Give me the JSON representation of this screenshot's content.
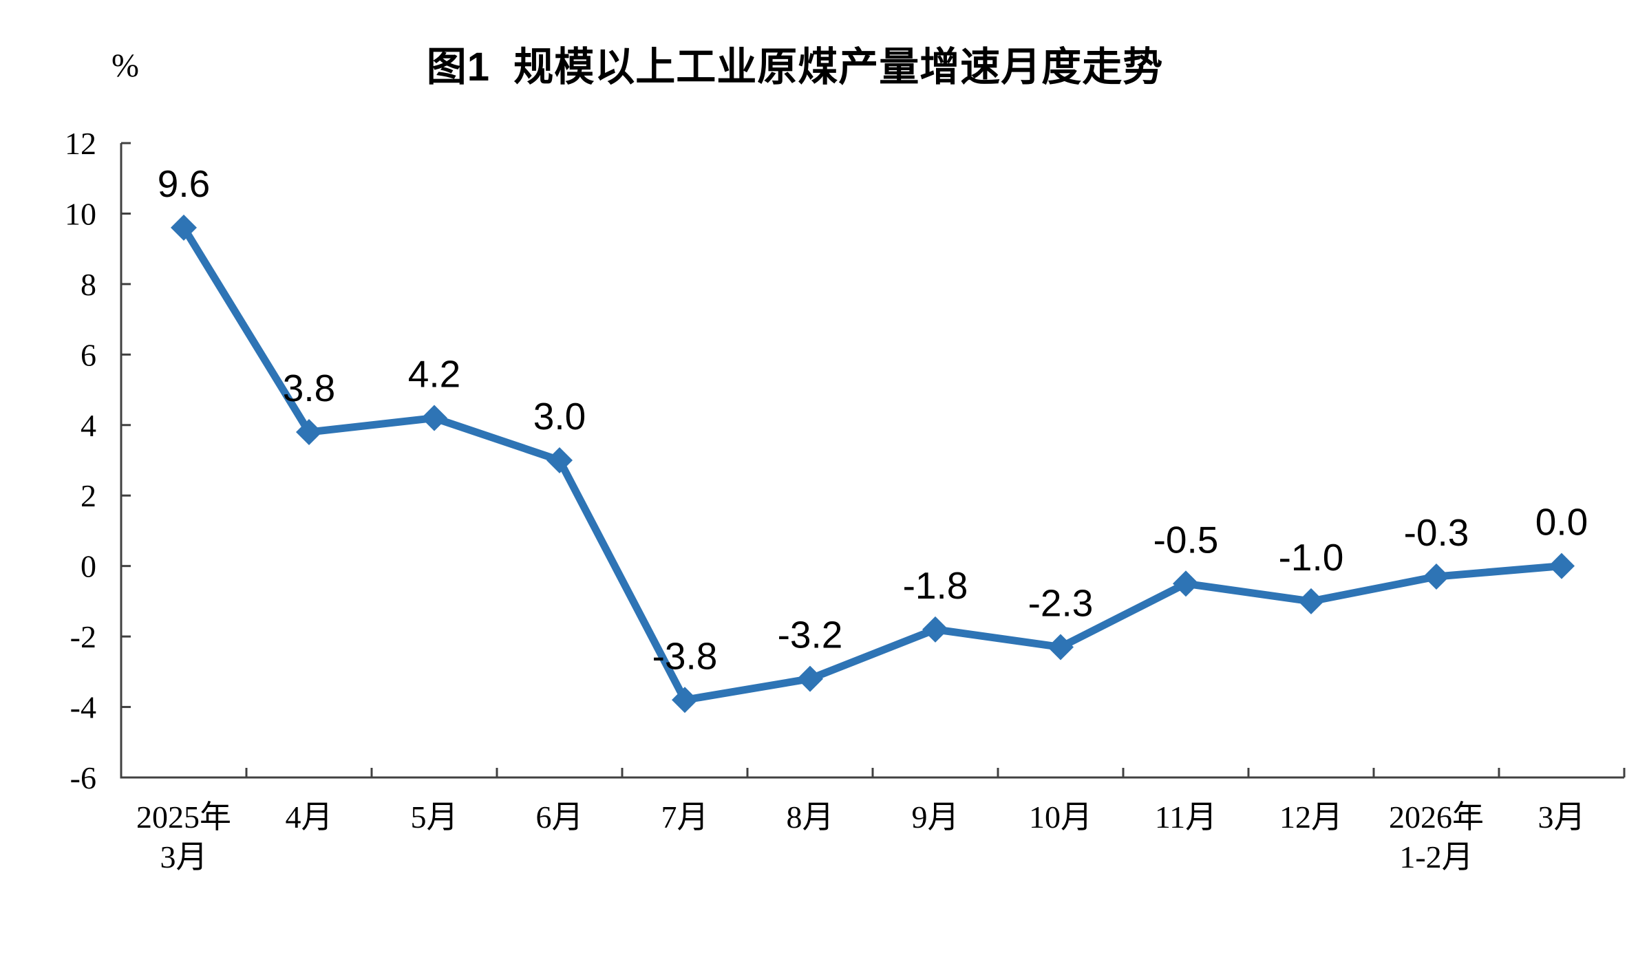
{
  "page": {
    "background": "#FFFFFF"
  },
  "chart_data": {
    "type": "line",
    "title": "图1  规模以上工业原煤产量增速月度走势",
    "unit_label": "%",
    "categories": [
      "2025年\n3月",
      "4月",
      "5月",
      "6月",
      "7月",
      "8月",
      "9月",
      "10月",
      "11月",
      "12月",
      "2026年\n1-2月",
      "3月"
    ],
    "values": [
      9.6,
      3.8,
      4.2,
      3.0,
      -3.8,
      -3.2,
      -1.8,
      -2.3,
      -0.5,
      -1.0,
      -0.3,
      0.0
    ],
    "data_labels": [
      "9.6",
      "3.8",
      "4.2",
      "3.0",
      "-3.8",
      "-3.2",
      "-1.8",
      "-2.3",
      "-0.5",
      "-1.0",
      "-0.3",
      "0.0"
    ],
    "ylim": [
      -6,
      12
    ],
    "yticks": [
      12,
      10,
      8,
      6,
      4,
      2,
      0,
      -2,
      -4,
      -6
    ],
    "ytick_step": 2,
    "grid": false,
    "legend": "none",
    "marker": "diamond",
    "line_color": "#2E74B5",
    "axis_color": "#404040",
    "text_color": "#000000"
  }
}
